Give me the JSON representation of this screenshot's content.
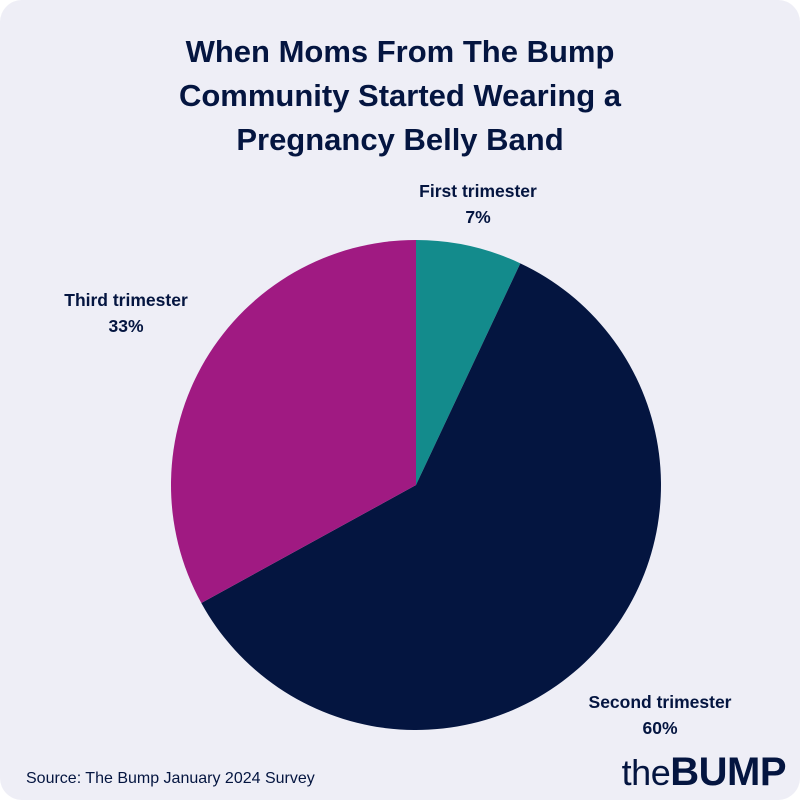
{
  "title_lines": [
    "When Moms From The Bump",
    "Community Started Wearing a",
    "Pregnancy Belly Band"
  ],
  "source": "Source: The Bump January 2024 Survey",
  "logo": {
    "prefix": "the",
    "brand": "BUMP"
  },
  "chart_data": {
    "type": "pie",
    "title": "When Moms From The Bump Community Started Wearing a Pregnancy Belly Band",
    "start_angle": "12 o'clock",
    "direction": "clockwise",
    "slices": [
      {
        "label": "First trimester",
        "value": 7,
        "value_label": "7%",
        "color": "#138b8c"
      },
      {
        "label": "Second trimester",
        "value": 60,
        "value_label": "60%",
        "color": "#041540"
      },
      {
        "label": "Third trimester",
        "value": 33,
        "value_label": "33%",
        "color": "#a01a82"
      }
    ]
  }
}
